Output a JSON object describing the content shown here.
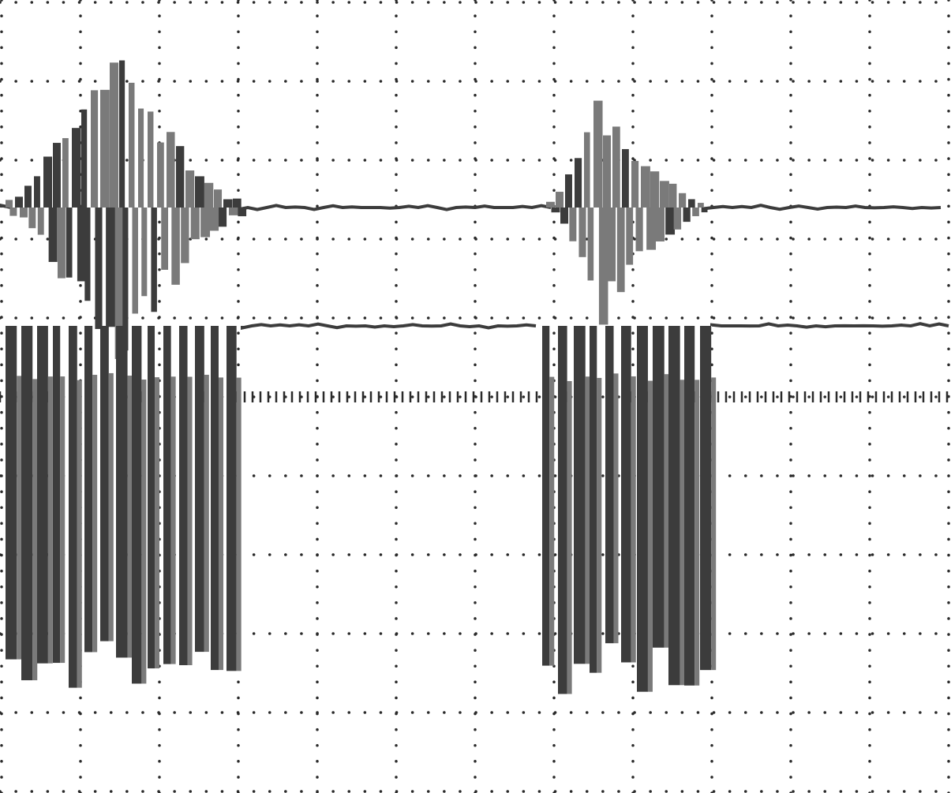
{
  "chart_data": {
    "type": "line",
    "title": "",
    "xlabel": "",
    "ylabel": "",
    "grid": true,
    "grid_style": "dotted",
    "x_divisions": 12,
    "y_divisions": 10,
    "xlim": [
      0,
      12
    ],
    "ylim": [
      -5,
      5
    ],
    "colors": {
      "background": "#ffffff",
      "trace": "#3c3c3c",
      "trace_light": "#7a7a7a",
      "grid": "#2a2a2a"
    },
    "series": [
      {
        "baseline_div": 2.4,
        "bursts": [
          {
            "x": [
              0.05,
              3.0
            ],
            "peak_x": 1.35,
            "amplitude_div": 2.0
          },
          {
            "x": [
              6.9,
              8.9
            ],
            "peak_x": 7.5,
            "amplitude_div": 1.3
          }
        ]
      },
      {
        "baseline_div": 0.9,
        "bursts": [
          {
            "x": [
              0.05,
              3.05
            ],
            "low_div": -3.8
          },
          {
            "x": [
              6.85,
              9.0
            ],
            "low_div": -3.8
          }
        ]
      }
    ]
  }
}
